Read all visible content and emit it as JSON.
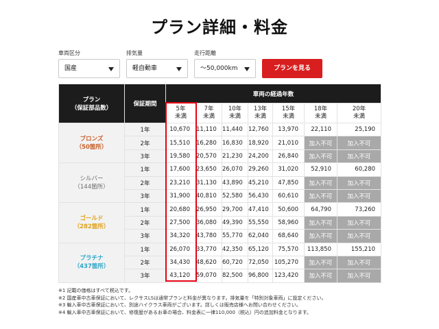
{
  "page": {
    "title": "プラン詳細・料金"
  },
  "filters": {
    "vehicle_class": {
      "label": "車両区分",
      "value": "国産"
    },
    "displacement": {
      "label": "排気量",
      "value": "軽自動車"
    },
    "mileage": {
      "label": "走行距離",
      "value": "～50,000km"
    },
    "submit_label": "プランを見る"
  },
  "table": {
    "header_plan_line1": "プラン",
    "header_plan_line2": "（保証部品数）",
    "header_period": "保証期間",
    "header_years": "車両の経過年数",
    "year_columns": [
      {
        "line1": "5年",
        "line2": "未満"
      },
      {
        "line1": "7年",
        "line2": "未満"
      },
      {
        "line1": "10年",
        "line2": "未満"
      },
      {
        "line1": "13年",
        "line2": "未満"
      },
      {
        "line1": "15年",
        "line2": "未満"
      },
      {
        "line1": "18年",
        "line2": "未満"
      },
      {
        "line1": "20年",
        "line2": "未満"
      }
    ],
    "not_available": "加入不可",
    "highlighted_column": "5年 未満",
    "plans": [
      {
        "name": "ブロンズ",
        "parts": "（50箇所）",
        "color": "#c9622b",
        "rows": [
          {
            "period": "1年",
            "prices": [
              "10,670",
              "11,110",
              "11,440",
              "12,760",
              "13,970",
              "22,110",
              "25,190"
            ]
          },
          {
            "period": "2年",
            "prices": [
              "15,510",
              "16,280",
              "16,830",
              "18,920",
              "21,010",
              "加入不可",
              "加入不可"
            ]
          },
          {
            "period": "3年",
            "prices": [
              "19,580",
              "20,570",
              "21,230",
              "24,200",
              "26,840",
              "加入不可",
              "加入不可"
            ]
          }
        ]
      },
      {
        "name": "シルバー",
        "parts": "（144箇所）",
        "color": "#6a6a6a",
        "rows": [
          {
            "period": "1年",
            "prices": [
              "17,600",
              "23,650",
              "26,070",
              "29,260",
              "31,020",
              "52,910",
              "60,280"
            ]
          },
          {
            "period": "2年",
            "prices": [
              "23,210",
              "31,130",
              "43,890",
              "45,210",
              "47,850",
              "加入不可",
              "加入不可"
            ]
          },
          {
            "period": "3年",
            "prices": [
              "31,900",
              "40,810",
              "52,580",
              "56,430",
              "60,610",
              "加入不可",
              "加入不可"
            ]
          }
        ]
      },
      {
        "name": "ゴールド",
        "parts": "（282箇所）",
        "color": "#e0a21a",
        "rows": [
          {
            "period": "1年",
            "prices": [
              "20,680",
              "26,950",
              "29,700",
              "47,410",
              "50,600",
              "64,790",
              "73,260"
            ]
          },
          {
            "period": "2年",
            "prices": [
              "27,500",
              "36,080",
              "49,390",
              "55,550",
              "58,960",
              "加入不可",
              "加入不可"
            ]
          },
          {
            "period": "3年",
            "prices": [
              "34,320",
              "43,780",
              "55,770",
              "62,040",
              "68,640",
              "加入不可",
              "加入不可"
            ]
          }
        ]
      },
      {
        "name": "プラチナ",
        "parts": "（437箇所）",
        "color": "#2fa7c9",
        "rows": [
          {
            "period": "1年",
            "prices": [
              "26,070",
              "33,770",
              "42,350",
              "65,120",
              "75,570",
              "113,850",
              "155,210"
            ]
          },
          {
            "period": "2年",
            "prices": [
              "34,430",
              "48,620",
              "60,720",
              "72,050",
              "105,270",
              "加入不可",
              "加入不可"
            ]
          },
          {
            "period": "3年",
            "prices": [
              "43,120",
              "59,070",
              "82,500",
              "96,800",
              "123,420",
              "加入不可",
              "加入不可"
            ]
          }
        ]
      }
    ]
  },
  "notes": [
    "※1 記載の価格はすべて税込です。",
    "※2 国産車中古車保証において、レクサスLSは通常プランと料金が異なります。排気量を「特別対象車両」に設定ください。",
    "※3 輸入車中古車保証において、別途ハイクラス車両がございます。詳しくは販売店様へお問い合わせください。",
    "※4 輸入車中古車保証において、修復歴があるお車の場合、料金表に一律110,000（税込）円の追加料金となります。"
  ]
}
